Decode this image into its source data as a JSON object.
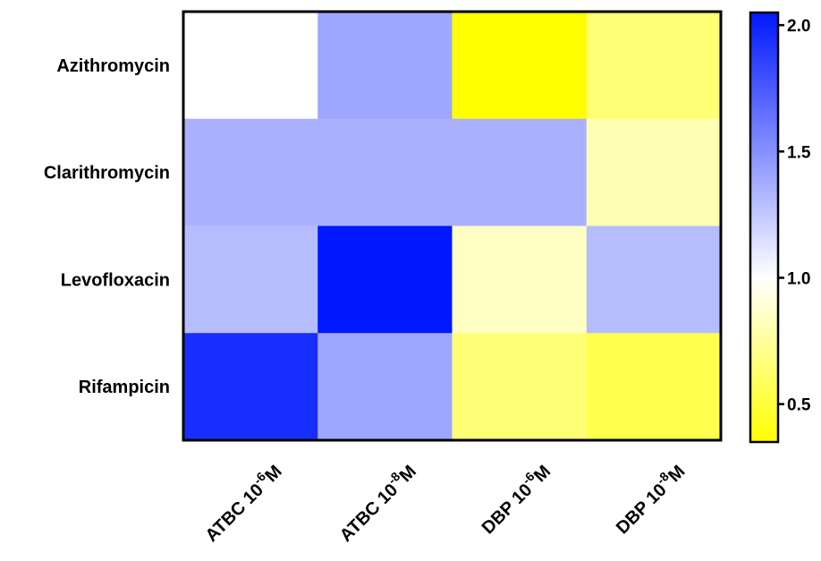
{
  "chart_data": {
    "type": "heatmap",
    "rows": [
      "Azithromycin",
      "Clarithromycin",
      "Levofloxacin",
      "Rifampicin"
    ],
    "columns": [
      {
        "base": "ATBC 10",
        "exp": "-6",
        "unit": "M"
      },
      {
        "base": "ATBC 10",
        "exp": "-8",
        "unit": "M"
      },
      {
        "base": "DBP 10",
        "exp": "-6",
        "unit": "M"
      },
      {
        "base": "DBP 10",
        "exp": "-8",
        "unit": "M"
      }
    ],
    "values": [
      [
        1.0,
        1.4,
        0.35,
        0.65
      ],
      [
        1.35,
        1.35,
        1.35,
        0.8
      ],
      [
        1.3,
        2.05,
        0.85,
        1.3
      ],
      [
        1.95,
        1.4,
        0.65,
        0.55
      ]
    ],
    "colorbar": {
      "min": 0.35,
      "mid": 1.0,
      "max": 2.05,
      "ticks": [
        0.5,
        1.0,
        1.5,
        2.0
      ],
      "tick_labels": [
        "0.5",
        "1.0",
        "1.5",
        "2.0"
      ],
      "color_low": "#ffff00",
      "color_mid": "#ffffff",
      "color_high": "#0018ff"
    }
  }
}
